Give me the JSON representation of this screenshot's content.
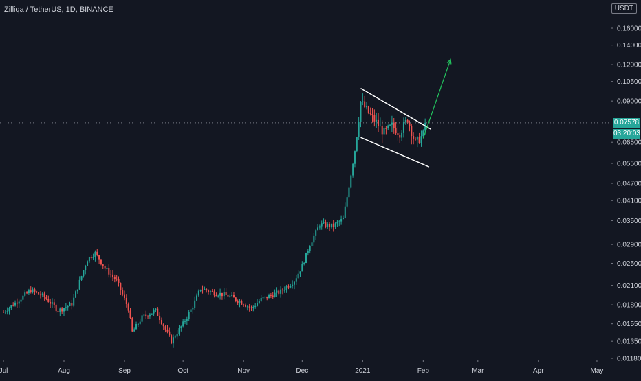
{
  "header": {
    "symbol_title": "Zilliqa / TetherUS, 1D, BINANCE",
    "currency": "USDT"
  },
  "last_price": {
    "value": "0.07578",
    "countdown": "03:20:03",
    "color": "#26a69a"
  },
  "colors": {
    "background": "#131722",
    "up_candle": "#26a69a",
    "down_candle": "#ef5350",
    "channel_lines": "#ffffff",
    "projection_arrow": "#22c55e",
    "price_line": "#787b86"
  },
  "chart_data": {
    "type": "candlestick",
    "title": "Zilliqa / TetherUS, 1D, BINANCE",
    "yscale": "log",
    "ylim": [
      0.0113,
      0.185
    ],
    "y_ticks": [
      "0.16000",
      "0.14000",
      "0.12000",
      "0.10500",
      "0.09000",
      "0.07578",
      "0.06500",
      "0.05500",
      "0.04700",
      "0.04100",
      "0.03500",
      "0.02900",
      "0.02500",
      "0.02100",
      "0.01800",
      "0.01550",
      "0.01350",
      "0.01180"
    ],
    "x_ticks": [
      "Jul",
      "Aug",
      "Sep",
      "Oct",
      "Nov",
      "Dec",
      "2021",
      "Feb",
      "Mar",
      "Apr",
      "May"
    ],
    "close_path": [
      [
        "2020-07-01",
        0.017
      ],
      [
        "2020-07-08",
        0.0185
      ],
      [
        "2020-07-15",
        0.0202
      ],
      [
        "2020-07-22",
        0.0192
      ],
      [
        "2020-07-29",
        0.0172
      ],
      [
        "2020-08-05",
        0.0181
      ],
      [
        "2020-08-10",
        0.0226
      ],
      [
        "2020-08-13",
        0.0258
      ],
      [
        "2020-08-17",
        0.0271
      ],
      [
        "2020-08-22",
        0.024
      ],
      [
        "2020-08-28",
        0.0218
      ],
      [
        "2020-09-03",
        0.0175
      ],
      [
        "2020-09-05",
        0.0145
      ],
      [
        "2020-09-10",
        0.0163
      ],
      [
        "2020-09-17",
        0.0172
      ],
      [
        "2020-09-21",
        0.0153
      ],
      [
        "2020-09-25",
        0.0135
      ],
      [
        "2020-10-01",
        0.0155
      ],
      [
        "2020-10-06",
        0.0178
      ],
      [
        "2020-10-10",
        0.0205
      ],
      [
        "2020-10-17",
        0.0198
      ],
      [
        "2020-10-24",
        0.0194
      ],
      [
        "2020-11-01",
        0.0182
      ],
      [
        "2020-11-05",
        0.0175
      ],
      [
        "2020-11-10",
        0.0188
      ],
      [
        "2020-11-20",
        0.02
      ],
      [
        "2020-11-27",
        0.0218
      ],
      [
        "2020-12-01",
        0.0245
      ],
      [
        "2020-12-05",
        0.029
      ],
      [
        "2020-12-10",
        0.034
      ],
      [
        "2020-12-17",
        0.0335
      ],
      [
        "2020-12-22",
        0.0355
      ],
      [
        "2020-12-25",
        0.046
      ],
      [
        "2020-12-28",
        0.061
      ],
      [
        "2020-12-31",
        0.0895
      ],
      [
        "2021-01-04",
        0.082
      ],
      [
        "2021-01-08",
        0.076
      ],
      [
        "2021-01-12",
        0.07
      ],
      [
        "2021-01-16",
        0.074
      ],
      [
        "2021-01-20",
        0.07
      ],
      [
        "2021-01-24",
        0.078
      ],
      [
        "2021-01-28",
        0.0645
      ],
      [
        "2021-02-01",
        0.069
      ],
      [
        "2021-02-02",
        0.07578
      ]
    ],
    "annotations": {
      "channel_upper": [
        [
          "2020-12-31",
          0.0995
        ],
        [
          "2021-02-05",
          0.072
        ]
      ],
      "channel_lower": [
        [
          "2020-12-31",
          0.0675
        ],
        [
          "2021-02-04",
          0.0535
        ]
      ],
      "arrow": [
        [
          "2021-02-01",
          0.067
        ],
        [
          "2021-02-15",
          0.125
        ]
      ]
    },
    "grid": false
  }
}
